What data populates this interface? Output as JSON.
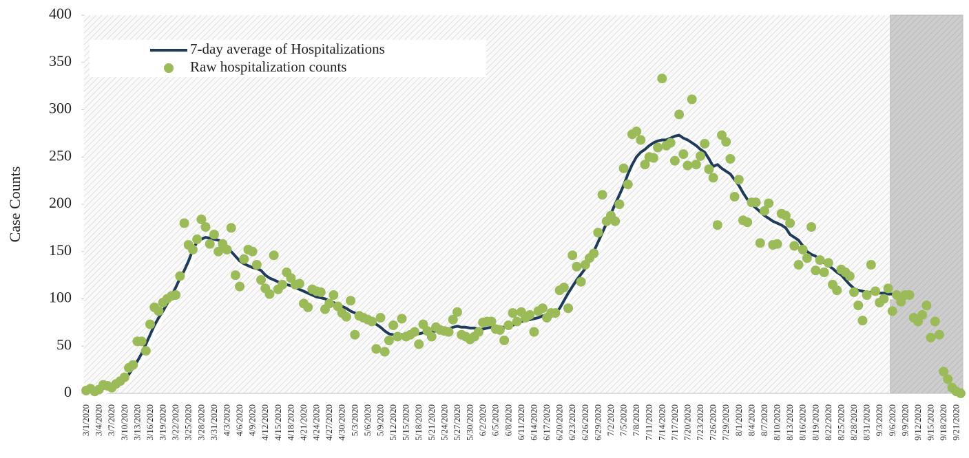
{
  "chart_data": {
    "type": "line",
    "y_label": "Case Counts",
    "categories": [
      "3/1/2020",
      null,
      null,
      "3/4/2020",
      null,
      null,
      "3/7/2020",
      null,
      null,
      "3/10/2020",
      null,
      null,
      "3/13/2020",
      null,
      null,
      "3/16/2020",
      null,
      null,
      "3/19/2020",
      null,
      null,
      "3/22/2020",
      null,
      null,
      "3/25/2020",
      null,
      null,
      "3/28/2020",
      null,
      null,
      "3/31/2020",
      null,
      null,
      "4/3/2020",
      null,
      null,
      "4/6/2020",
      null,
      null,
      "4/9/2020",
      null,
      null,
      "4/12/2020",
      null,
      null,
      "4/15/2020",
      null,
      null,
      "4/18/2020",
      null,
      null,
      "4/21/2020",
      null,
      null,
      "4/24/2020",
      null,
      null,
      "4/27/2020",
      null,
      null,
      "4/30/2020",
      null,
      null,
      "5/3/2020",
      null,
      null,
      "5/6/2020",
      null,
      null,
      "5/9/2020",
      null,
      null,
      "5/12/2020",
      null,
      null,
      "5/15/2020",
      null,
      null,
      "5/18/2020",
      null,
      null,
      "5/21/2020",
      null,
      null,
      "5/24/2020",
      null,
      null,
      "5/27/2020",
      null,
      null,
      "5/30/2020",
      null,
      null,
      "6/2/2020",
      null,
      null,
      "6/5/2020",
      null,
      null,
      "6/8/2020",
      null,
      null,
      "6/11/2020",
      null,
      null,
      "6/14/2020",
      null,
      null,
      "6/17/2020",
      null,
      null,
      "6/20/2020",
      null,
      null,
      "6/23/2020",
      null,
      null,
      "6/26/2020",
      null,
      null,
      "6/29/2020",
      null,
      null,
      "7/2/2020",
      null,
      null,
      "7/5/2020",
      null,
      null,
      "7/8/2020",
      null,
      null,
      "7/11/2020",
      null,
      null,
      "7/14/2020",
      null,
      null,
      "7/17/2020",
      null,
      null,
      "7/20/2020",
      null,
      null,
      "7/23/2020",
      null,
      null,
      "7/26/2020",
      null,
      null,
      "7/29/2020",
      null,
      null,
      "8/1/2020",
      null,
      null,
      "8/4/2020",
      null,
      null,
      "8/7/2020",
      null,
      null,
      "8/10/2020",
      null,
      null,
      "8/13/2020",
      null,
      null,
      "8/16/2020",
      null,
      null,
      "8/19/2020",
      null,
      null,
      "8/22/2020",
      null,
      null,
      "8/25/2020",
      null,
      null,
      "8/28/2020",
      null,
      null,
      "8/31/2020",
      null,
      null,
      "9/3/2020",
      null,
      null,
      "9/6/2020",
      null,
      null,
      "9/9/2020",
      null,
      null,
      "9/12/2020",
      null,
      null,
      "9/15/2020",
      null,
      null,
      "9/18/2020",
      null,
      null,
      "9/21/2020",
      null
    ],
    "series": [
      {
        "name": "7-day average of Hospitalizations",
        "type": "line",
        "color": "#1f3b5c",
        "values": [
          2,
          3,
          4,
          5,
          5,
          6,
          7,
          9,
          12,
          15,
          20,
          27,
          34,
          42,
          52,
          62,
          72,
          80,
          87,
          95,
          103,
          112,
          122,
          130,
          140,
          152,
          160,
          163,
          165,
          164,
          163,
          162,
          160,
          155,
          150,
          145,
          140,
          137,
          135,
          133,
          132,
          130,
          125,
          122,
          120,
          118,
          116,
          115,
          114,
          112,
          110,
          108,
          106,
          104,
          102,
          101,
          100,
          98,
          96,
          94,
          92,
          90,
          87,
          85,
          83,
          80,
          78,
          76,
          73,
          70,
          66,
          63,
          62,
          62,
          62,
          62,
          63,
          63,
          63,
          64,
          64,
          65,
          66,
          67,
          67,
          68,
          70,
          71,
          70,
          70,
          69,
          69,
          68,
          68,
          69,
          70,
          70,
          70,
          70,
          71,
          72,
          74,
          76,
          77,
          78,
          79,
          80,
          82,
          83,
          84,
          85,
          90,
          98,
          106,
          113,
          120,
          126,
          132,
          140,
          150,
          160,
          170,
          180,
          190,
          200,
          210,
          220,
          232,
          242,
          250,
          255,
          258,
          262,
          265,
          267,
          268,
          268,
          270,
          272,
          273,
          270,
          268,
          265,
          262,
          258,
          255,
          248,
          240,
          242,
          238,
          235,
          232,
          226,
          220,
          212,
          205,
          200,
          196,
          192,
          188,
          185,
          182,
          180,
          178,
          175,
          168,
          165,
          162,
          156,
          150,
          147,
          145,
          142,
          138,
          135,
          132,
          128,
          125,
          120,
          115,
          111,
          109,
          108,
          107,
          107,
          107,
          106,
          106,
          105,
          105,
          104,
          null,
          null,
          null,
          null,
          null,
          null,
          null,
          null,
          null,
          null,
          null,
          null,
          null,
          null,
          null
        ]
      },
      {
        "name": "Raw hospitalization counts",
        "type": "scatter",
        "color": "#9bbb59",
        "values": [
          3,
          5,
          2,
          4,
          9,
          8,
          6,
          10,
          13,
          17,
          27,
          30,
          55,
          55,
          45,
          73,
          91,
          87,
          96,
          100,
          103,
          104,
          124,
          180,
          157,
          152,
          163,
          184,
          176,
          158,
          168,
          150,
          158,
          152,
          175,
          125,
          113,
          142,
          152,
          150,
          136,
          120,
          111,
          105,
          146,
          110,
          115,
          128,
          122,
          115,
          116,
          95,
          91,
          110,
          108,
          107,
          89,
          95,
          104,
          92,
          85,
          81,
          98,
          62,
          82,
          80,
          78,
          76,
          47,
          80,
          44,
          56,
          72,
          60,
          79,
          60,
          62,
          65,
          52,
          73,
          66,
          60,
          70,
          67,
          66,
          65,
          78,
          86,
          62,
          60,
          57,
          60,
          65,
          75,
          76,
          76,
          68,
          67,
          56,
          72,
          85,
          76,
          86,
          80,
          83,
          65,
          87,
          90,
          80,
          85,
          85,
          109,
          112,
          90,
          146,
          134,
          118,
          136,
          143,
          148,
          170,
          210,
          182,
          188,
          182,
          200,
          238,
          221,
          274,
          277,
          268,
          242,
          250,
          249,
          260,
          333,
          262,
          265,
          246,
          295,
          253,
          241,
          311,
          242,
          251,
          264,
          237,
          228,
          178,
          273,
          266,
          248,
          208,
          226,
          183,
          181,
          202,
          202,
          159,
          193,
          201,
          157,
          158,
          190,
          188,
          180,
          156,
          136,
          152,
          143,
          176,
          130,
          141,
          128,
          138,
          115,
          109,
          131,
          128,
          124,
          107,
          93,
          77,
          104,
          136,
          108,
          96,
          100,
          111,
          87,
          104,
          97,
          104,
          104,
          80,
          76,
          83,
          93,
          59,
          76,
          62,
          23,
          15,
          6,
          2,
          0
        ]
      }
    ],
    "ylim": [
      0,
      400
    ],
    "yticks": [
      0,
      50,
      100,
      150,
      200,
      250,
      300,
      350,
      400
    ],
    "shaded_from": "9/6/2020",
    "legend": "upper left"
  }
}
